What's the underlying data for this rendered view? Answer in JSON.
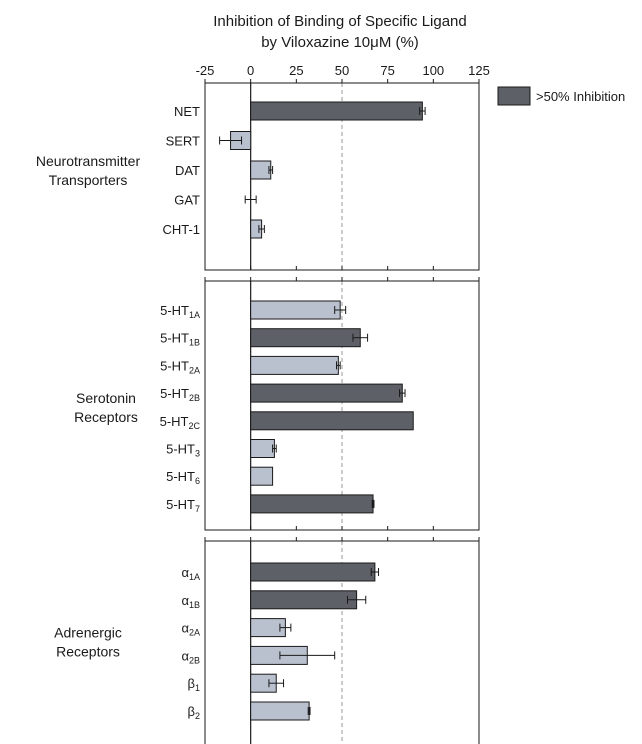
{
  "chart_data": {
    "type": "bar",
    "orientation": "horizontal",
    "title": "Inhibition of Binding of Specific Ligand",
    "subtitle_prefix": "by Viloxazine 10",
    "subtitle_mu": "μ",
    "subtitle_suffix": "M (%)",
    "xlim": [
      -25,
      125
    ],
    "xticks": [
      "-25",
      "0",
      "25",
      "50",
      "75",
      "100",
      "125"
    ],
    "xtick_values": [
      -25,
      0,
      25,
      50,
      75,
      100,
      125
    ],
    "reference_line": 50,
    "grid": false,
    "legend": {
      "label": ">50% Inhibition",
      "position": "top-right"
    },
    "colors": {
      "above50": "#5d6066",
      "below50": "#b9c1cf",
      "edge": "#1a1a1a",
      "refline": "#9a9a9a"
    },
    "panels": [
      {
        "group_label": [
          "Neurotransmitter",
          "Transporters"
        ],
        "bars": [
          {
            "base": "NET",
            "sub": "",
            "value": 94,
            "error": 1.5
          },
          {
            "base": "SERT",
            "sub": "",
            "value": -11,
            "error": 6
          },
          {
            "base": "DAT",
            "sub": "",
            "value": 11,
            "error": 1
          },
          {
            "base": "GAT",
            "sub": "",
            "value": 0,
            "error": 3
          },
          {
            "base": "CHT-1",
            "sub": "",
            "value": 6,
            "error": 1.5
          }
        ]
      },
      {
        "group_label": [
          "Serotonin",
          "Receptors"
        ],
        "bars": [
          {
            "base": "5-HT",
            "sub": "1A",
            "value": 49,
            "error": 3
          },
          {
            "base": "5-HT",
            "sub": "1B",
            "value": 60,
            "error": 4
          },
          {
            "base": "5-HT",
            "sub": "2A",
            "value": 48,
            "error": 1
          },
          {
            "base": "5-HT",
            "sub": "2B",
            "value": 83,
            "error": 1.5
          },
          {
            "base": "5-HT",
            "sub": "2C",
            "value": 89,
            "error": 0
          },
          {
            "base": "5-HT",
            "sub": "3",
            "value": 13,
            "error": 1
          },
          {
            "base": "5-HT",
            "sub": "6",
            "value": 12,
            "error": 0
          },
          {
            "base": "5-HT",
            "sub": "7",
            "value": 67,
            "error": 0.5
          }
        ]
      },
      {
        "group_label": [
          "Adrenergic",
          "Receptors"
        ],
        "bars": [
          {
            "base": "α",
            "sub": "1A",
            "value": 68,
            "error": 2
          },
          {
            "base": "α",
            "sub": "1B",
            "value": 58,
            "error": 5
          },
          {
            "base": "α",
            "sub": "2A",
            "value": 19,
            "error": 3
          },
          {
            "base": "α",
            "sub": "2B",
            "value": 31,
            "error": 15
          },
          {
            "base": "β",
            "sub": "1",
            "value": 14,
            "error": 4
          },
          {
            "base": "β",
            "sub": "2",
            "value": 32,
            "error": 0.5
          }
        ]
      }
    ]
  }
}
